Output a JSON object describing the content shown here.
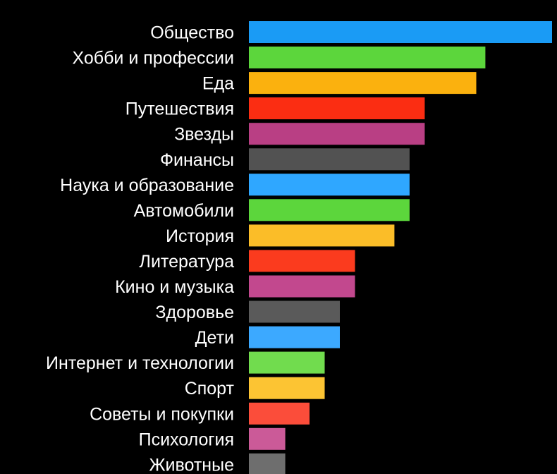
{
  "chart_data": {
    "type": "bar",
    "orientation": "horizontal",
    "categories": [
      "Общество",
      "Хобби и профессии",
      "Еда",
      "Путешествия",
      "Звезды",
      "Финансы",
      "Наука и образование",
      "Автомобили",
      "История",
      "Литература",
      "Кино и музыка",
      "Здоровье",
      "Дети",
      "Интернет и технологии",
      "Спорт",
      "Советы и покупки",
      "Психология",
      "Животные"
    ],
    "values": [
      100,
      78,
      75,
      58,
      58,
      53,
      53,
      53,
      48,
      35,
      35,
      30,
      30,
      25,
      25,
      20,
      12,
      12
    ],
    "colors": [
      "#1a9bf5",
      "#5cd63c",
      "#fbb10e",
      "#fb2d12",
      "#b93f84",
      "#525252",
      "#2fa7ff",
      "#5cd63c",
      "#fbbd28",
      "#fb3b1e",
      "#c2488e",
      "#5a5a5a",
      "#3ca9ff",
      "#71dc4e",
      "#fcc433",
      "#fb4d3a",
      "#cb5a98",
      "#6e6e6e"
    ],
    "background": "#000000",
    "label_color": "#ffffff",
    "xlim": [
      0,
      100
    ],
    "grid": false,
    "legend": "none",
    "title": "",
    "xlabel": "",
    "ylabel": ""
  }
}
